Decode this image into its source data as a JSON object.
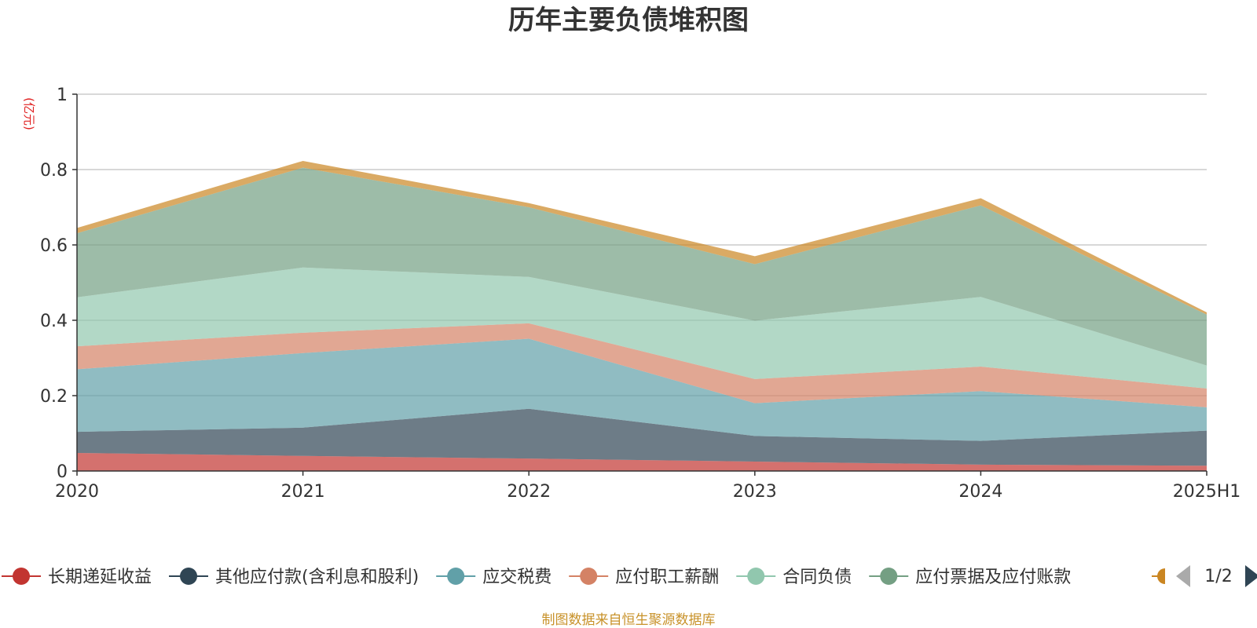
{
  "chart_data": {
    "type": "area",
    "stacked": true,
    "title": "历年主要负债堆积图",
    "unit_label": "(亿元)",
    "source_note": "制图数据来自恒生聚源数据库",
    "categories": [
      "2020",
      "2021",
      "2022",
      "2023",
      "2024",
      "2025H1"
    ],
    "ylim": [
      0,
      1
    ],
    "yticks": [
      "0",
      "0.2",
      "0.4",
      "0.6",
      "0.8",
      "1"
    ],
    "grid": true,
    "legend_position": "bottom",
    "legend_page": "1/2",
    "series": [
      {
        "name": "长期递延收益",
        "color": "#c23531",
        "values": [
          0.048,
          0.04,
          0.033,
          0.025,
          0.017,
          0.014
        ]
      },
      {
        "name": "其他应付款(含利息和股利)",
        "color": "#2f4554",
        "values": [
          0.056,
          0.075,
          0.132,
          0.068,
          0.063,
          0.093
        ]
      },
      {
        "name": "应交税费",
        "color": "#61a0a8",
        "values": [
          0.166,
          0.198,
          0.186,
          0.087,
          0.132,
          0.062
        ]
      },
      {
        "name": "应付职工薪酬",
        "color": "#d48265",
        "values": [
          0.061,
          0.054,
          0.041,
          0.064,
          0.065,
          0.05
        ]
      },
      {
        "name": "合同负债",
        "color": "#91c7ae",
        "values": [
          0.13,
          0.173,
          0.123,
          0.155,
          0.185,
          0.061
        ]
      },
      {
        "name": "应付票据及应付账款",
        "color": "#749f83",
        "values": [
          0.17,
          0.265,
          0.185,
          0.15,
          0.243,
          0.135
        ]
      },
      {
        "name": "",
        "color": "#ca8622",
        "values": [
          0.014,
          0.018,
          0.011,
          0.021,
          0.019,
          0.006
        ]
      }
    ]
  }
}
